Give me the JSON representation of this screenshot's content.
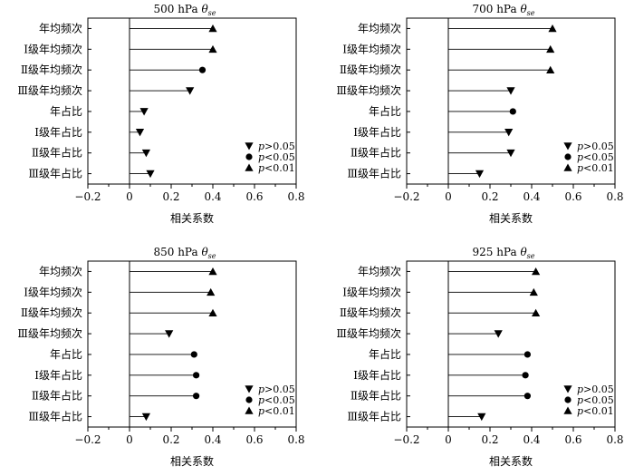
{
  "legend": [
    {
      "marker": "down-triangle",
      "p": "p",
      "text": ">0.05"
    },
    {
      "marker": "circle",
      "p": "p",
      "text": "<0.05"
    },
    {
      "marker": "up-triangle",
      "p": "p",
      "text": "<0.01"
    }
  ],
  "chart_data": [
    {
      "type": "lollipop",
      "title": "500 hPa",
      "title_symbol": "θ",
      "title_subscript": "se",
      "xlabel": "相关系数",
      "xlim": [
        -0.2,
        0.8
      ],
      "xticks": [
        "−0.2",
        "0",
        "0.2",
        "0.4",
        "0.6",
        "0.8"
      ],
      "categories": [
        "年均频次",
        "Ⅰ级年均频次",
        "Ⅱ级年均频次",
        "Ⅲ级年均频次",
        "年占比",
        "Ⅰ级年占比",
        "Ⅱ级年占比",
        "Ⅲ级年占比"
      ],
      "values": [
        0.4,
        0.4,
        0.35,
        0.29,
        0.07,
        0.05,
        0.08,
        0.1
      ],
      "markers": [
        "up",
        "up",
        "circle",
        "down",
        "down",
        "down",
        "down",
        "down"
      ]
    },
    {
      "type": "lollipop",
      "title": "700 hPa",
      "title_symbol": "θ",
      "title_subscript": "se",
      "xlabel": "相关系数",
      "xlim": [
        -0.2,
        0.8
      ],
      "xticks": [
        "−0.2",
        "0",
        "0.2",
        "0.4",
        "0.6",
        "0.8"
      ],
      "categories": [
        "年均频次",
        "Ⅰ级年均频次",
        "Ⅱ级年均频次",
        "Ⅲ级年均频次",
        "年占比",
        "Ⅰ级年占比",
        "Ⅱ级年占比",
        "Ⅲ级年占比"
      ],
      "values": [
        0.5,
        0.49,
        0.49,
        0.3,
        0.31,
        0.29,
        0.3,
        0.15
      ],
      "markers": [
        "up",
        "up",
        "up",
        "down",
        "circle",
        "down",
        "down",
        "down"
      ]
    },
    {
      "type": "lollipop",
      "title": "850 hPa",
      "title_symbol": "θ",
      "title_subscript": "se",
      "xlabel": "相关系数",
      "xlim": [
        -0.2,
        0.8
      ],
      "xticks": [
        "−0.2",
        "0",
        "0.2",
        "0.4",
        "0.6",
        "0.8"
      ],
      "categories": [
        "年均频次",
        "Ⅰ级年均频次",
        "Ⅱ级年均频次",
        "Ⅲ级年均频次",
        "年占比",
        "Ⅰ级年占比",
        "Ⅱ级年占比",
        "Ⅲ级年占比"
      ],
      "values": [
        0.4,
        0.39,
        0.4,
        0.19,
        0.31,
        0.32,
        0.32,
        0.08
      ],
      "markers": [
        "up",
        "up",
        "up",
        "down",
        "circle",
        "circle",
        "circle",
        "down"
      ]
    },
    {
      "type": "lollipop",
      "title": "925 hPa",
      "title_symbol": "θ",
      "title_subscript": "se",
      "xlabel": "相关系数",
      "xlim": [
        -0.2,
        0.8
      ],
      "xticks": [
        "−0.2",
        "0",
        "0.2",
        "0.4",
        "0.6",
        "0.8"
      ],
      "categories": [
        "年均频次",
        "Ⅰ级年均频次",
        "Ⅱ级年均频次",
        "Ⅲ级年均频次",
        "年占比",
        "Ⅰ级年占比",
        "Ⅱ级年占比",
        "Ⅲ级年占比"
      ],
      "values": [
        0.42,
        0.41,
        0.42,
        0.24,
        0.38,
        0.37,
        0.38,
        0.16
      ],
      "markers": [
        "up",
        "up",
        "up",
        "down",
        "circle",
        "circle",
        "circle",
        "down"
      ]
    }
  ]
}
